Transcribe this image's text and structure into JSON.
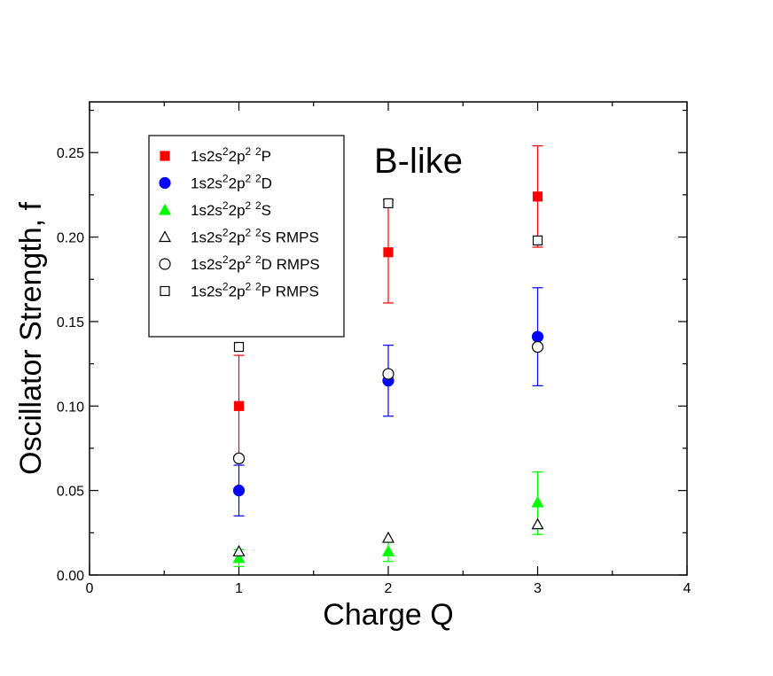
{
  "chart_data": {
    "type": "scatter",
    "title": "B-like",
    "xlabel": "Charge Q",
    "ylabel": "Oscillator Strength, f",
    "xlim": [
      0,
      4
    ],
    "ylim": [
      0,
      0.28
    ],
    "xticks": [
      0,
      1,
      2,
      3,
      4
    ],
    "yticks": [
      0.0,
      0.05,
      0.1,
      0.15,
      0.2,
      0.25
    ],
    "xtick_labels": [
      "0",
      "1",
      "2",
      "3",
      "4"
    ],
    "ytick_labels": [
      "0.00",
      "0.05",
      "0.10",
      "0.15",
      "0.20",
      "0.25"
    ],
    "grid": false,
    "legend_position": "top-left",
    "series": [
      {
        "name": "1s2s²2p² ²P",
        "label_parts": [
          "1s2s",
          "2",
          "2p",
          "2",
          " ",
          "2",
          "P"
        ],
        "marker": "filled-square",
        "color": "#ff0000",
        "x": [
          1,
          2,
          3
        ],
        "y": [
          0.1,
          0.191,
          0.224
        ],
        "yerr_low": [
          0.07,
          0.161,
          0.194
        ],
        "yerr_high": [
          0.13,
          0.222,
          0.254
        ]
      },
      {
        "name": "1s2s²2p² ²D",
        "label_parts": [
          "1s2s",
          "2",
          "2p",
          "2",
          " ",
          "2",
          "D"
        ],
        "marker": "filled-circle",
        "color": "#0000ff",
        "x": [
          1,
          2,
          3
        ],
        "y": [
          0.05,
          0.115,
          0.141
        ],
        "yerr_low": [
          0.035,
          0.094,
          0.112
        ],
        "yerr_high": [
          0.065,
          0.136,
          0.17
        ]
      },
      {
        "name": "1s2s²2p² ²S",
        "label_parts": [
          "1s2s",
          "2",
          "2p",
          "2",
          " ",
          "2",
          "S"
        ],
        "marker": "filled-triangle",
        "color": "#00ff00",
        "x": [
          1,
          2,
          3
        ],
        "y": [
          0.01,
          0.014,
          0.043
        ],
        "yerr_low": [
          0.005,
          0.008,
          0.024
        ],
        "yerr_high": [
          0.015,
          0.02,
          0.061
        ]
      },
      {
        "name": "1s2s²2p² ²S RMPS",
        "label_parts": [
          "1s2s",
          "2",
          "2p",
          "2",
          " ",
          "2",
          "S RMPS"
        ],
        "marker": "open-triangle",
        "color": "#000000",
        "x": [
          1,
          2,
          3
        ],
        "y": [
          0.014,
          0.022,
          0.03
        ]
      },
      {
        "name": "1s2s²2p² ²D RMPS",
        "label_parts": [
          "1s2s",
          "2",
          "2p",
          "2",
          " ",
          "2",
          "D RMPS"
        ],
        "marker": "open-circle",
        "color": "#000000",
        "x": [
          1,
          2,
          3
        ],
        "y": [
          0.069,
          0.119,
          0.135
        ]
      },
      {
        "name": "1s2s²2p² ²P RMPS",
        "label_parts": [
          "1s2s",
          "2",
          "2p",
          "2",
          " ",
          "2",
          "P RMPS"
        ],
        "marker": "open-square",
        "color": "#000000",
        "x": [
          1,
          2,
          3
        ],
        "y": [
          0.135,
          0.22,
          0.198
        ]
      }
    ]
  }
}
